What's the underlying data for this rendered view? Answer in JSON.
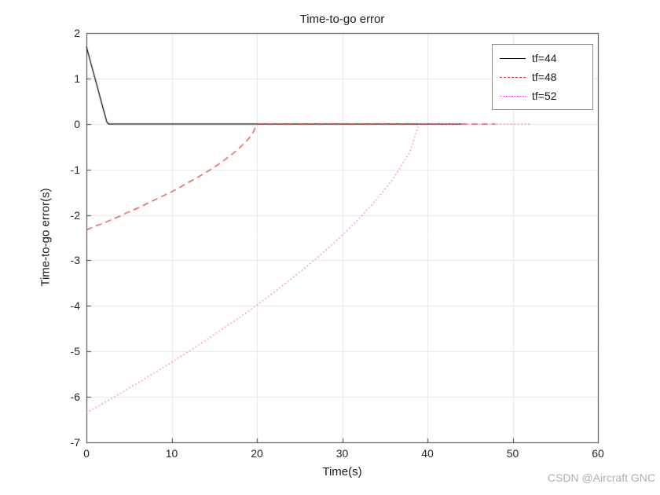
{
  "figure": {
    "watermark": "CSDN @Aircraft GNC"
  },
  "chart_data": {
    "type": "line",
    "title": "Time-to-go error",
    "xlabel": "Time(s)",
    "ylabel": "Time-to-go error(s)",
    "xlim": [
      0,
      60
    ],
    "ylim": [
      -7,
      2
    ],
    "xticks": [
      0,
      10,
      20,
      30,
      40,
      50,
      60
    ],
    "yticks": [
      -7,
      -6,
      -5,
      -4,
      -3,
      -2,
      -1,
      0,
      1,
      2
    ],
    "grid": true,
    "legend_position": "top-right",
    "series": [
      {
        "name": "tf=44",
        "color": "#000000",
        "style": "solid",
        "points": [
          [
            0,
            1.7
          ],
          [
            0.6,
            1.28
          ],
          [
            1.2,
            0.87
          ],
          [
            1.8,
            0.45
          ],
          [
            2.4,
            0.04
          ],
          [
            2.6,
            0
          ],
          [
            44,
            0
          ]
        ]
      },
      {
        "name": "tf=48",
        "color": "#e03030",
        "style": "dashed",
        "points": [
          [
            0,
            -2.33
          ],
          [
            1,
            -2.25
          ],
          [
            2,
            -2.18
          ],
          [
            3,
            -2.1
          ],
          [
            4,
            -2.02
          ],
          [
            5,
            -1.93
          ],
          [
            6,
            -1.85
          ],
          [
            7,
            -1.76
          ],
          [
            8,
            -1.67
          ],
          [
            9,
            -1.58
          ],
          [
            10,
            -1.49
          ],
          [
            11,
            -1.39
          ],
          [
            12,
            -1.28
          ],
          [
            13,
            -1.18
          ],
          [
            14,
            -1.07
          ],
          [
            15,
            -0.95
          ],
          [
            16,
            -0.82
          ],
          [
            17,
            -0.68
          ],
          [
            18,
            -0.52
          ],
          [
            19,
            -0.33
          ],
          [
            19.5,
            -0.21
          ],
          [
            20,
            0
          ],
          [
            48,
            0
          ]
        ]
      },
      {
        "name": "tf=52",
        "color": "#ef58d0",
        "style": "dotted",
        "points": [
          [
            0,
            -6.35
          ],
          [
            2,
            -6.14
          ],
          [
            4,
            -5.92
          ],
          [
            6,
            -5.7
          ],
          [
            8,
            -5.47
          ],
          [
            10,
            -5.24
          ],
          [
            12,
            -5.0
          ],
          [
            14,
            -4.76
          ],
          [
            16,
            -4.5
          ],
          [
            18,
            -4.25
          ],
          [
            20,
            -3.98
          ],
          [
            22,
            -3.7
          ],
          [
            24,
            -3.41
          ],
          [
            26,
            -3.11
          ],
          [
            28,
            -2.79
          ],
          [
            30,
            -2.45
          ],
          [
            32,
            -2.08
          ],
          [
            34,
            -1.67
          ],
          [
            36,
            -1.2
          ],
          [
            38,
            -0.59
          ],
          [
            39,
            0
          ],
          [
            52,
            0
          ]
        ]
      }
    ]
  }
}
